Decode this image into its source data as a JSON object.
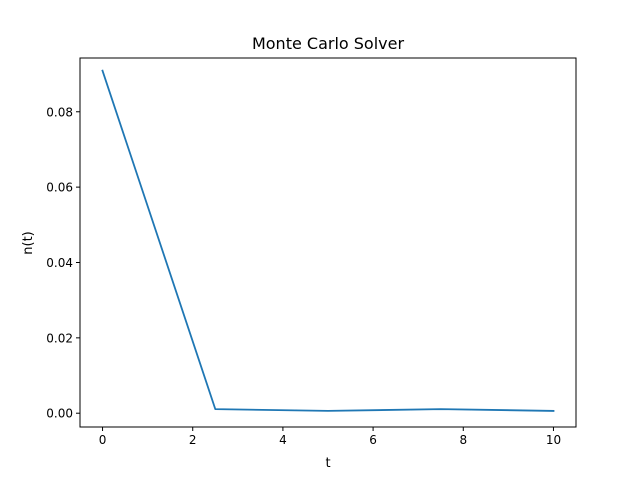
{
  "chart_data": {
    "type": "line",
    "title": "Monte Carlo Solver",
    "xlabel": "t",
    "ylabel": "n(t)",
    "xlim": [
      -0.5,
      10.5
    ],
    "ylim": [
      -0.00366,
      0.09427
    ],
    "xticks": [
      0,
      2,
      4,
      6,
      8,
      10
    ],
    "xtick_labels": [
      "0",
      "2",
      "4",
      "6",
      "8",
      "10"
    ],
    "yticks": [
      0.0,
      0.02,
      0.04,
      0.06,
      0.08
    ],
    "ytick_labels": [
      "0.00",
      "0.02",
      "0.04",
      "0.06",
      "0.08"
    ],
    "grid": false,
    "series": [
      {
        "name": "n(t)",
        "color": "#1f77b4",
        "x": [
          0,
          2.5,
          5,
          7.5,
          10
        ],
        "y": [
          0.0909,
          0.0011,
          0.0006,
          0.0011,
          0.0006
        ]
      }
    ]
  }
}
